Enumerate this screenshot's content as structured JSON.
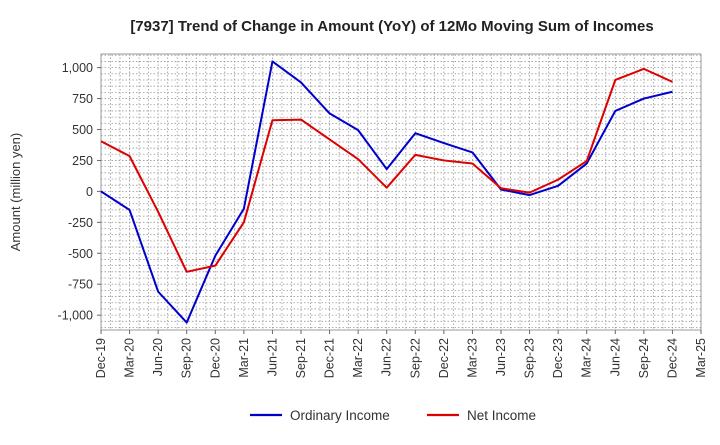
{
  "chart_data": {
    "type": "line",
    "title": "[7937]  Trend of Change in Amount (YoY) of 12Mo Moving Sum of Incomes",
    "ylabel": "Amount (million yen)",
    "xlabel": "",
    "ylim": [
      -1120,
      1110
    ],
    "yticks": [
      1000,
      750,
      500,
      250,
      0,
      -250,
      -500,
      -750,
      -1000
    ],
    "ytick_labels": [
      "1,000",
      "750",
      "500",
      "250",
      "0",
      "-250",
      "-500",
      "-750",
      "-1,000"
    ],
    "categories": [
      "Dec-19",
      "Mar-20",
      "Jun-20",
      "Sep-20",
      "Dec-20",
      "Mar-21",
      "Jun-21",
      "Sep-21",
      "Dec-21",
      "Mar-22",
      "Jun-22",
      "Sep-22",
      "Dec-22",
      "Mar-23",
      "Jun-23",
      "Sep-23",
      "Dec-23",
      "Mar-24",
      "Jun-24",
      "Sep-24",
      "Dec-24",
      "Mar-25"
    ],
    "grid": true,
    "legend_position": "bottom",
    "series": [
      {
        "name": "Ordinary Income",
        "color": "#0000cc",
        "values": [
          0,
          -150,
          -810,
          -1060,
          -520,
          -140,
          1050,
          880,
          630,
          495,
          180,
          470,
          390,
          315,
          15,
          -30,
          45,
          225,
          650,
          750,
          805,
          null
        ]
      },
      {
        "name": "Net Income",
        "color": "#dd0000",
        "values": [
          405,
          285,
          -165,
          -650,
          -600,
          -250,
          575,
          580,
          420,
          260,
          30,
          295,
          250,
          225,
          25,
          -10,
          95,
          245,
          900,
          990,
          885,
          null
        ]
      }
    ]
  }
}
